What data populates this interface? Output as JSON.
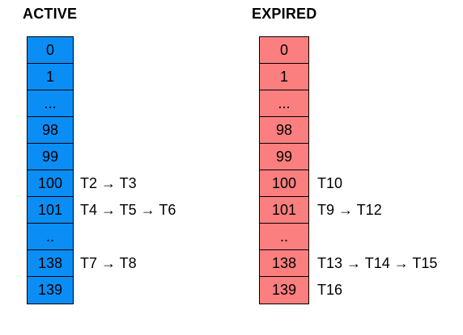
{
  "active": {
    "title": "ACTIVE",
    "color": "#0a8ef5",
    "cells": [
      "0",
      "1",
      "...",
      "98",
      "99",
      "100",
      "101",
      "..",
      "138",
      "139"
    ],
    "chains": [
      {
        "row": 5,
        "text": "T2 → T3"
      },
      {
        "row": 6,
        "text": "T4 → T5 → T6"
      },
      {
        "row": 8,
        "text": "T7 → T8"
      }
    ]
  },
  "expired": {
    "title": "EXPIRED",
    "color": "#fb7f7f",
    "cells": [
      "0",
      "1",
      "...",
      "98",
      "99",
      "100",
      "101",
      "..",
      "138",
      "139"
    ],
    "chains": [
      {
        "row": 5,
        "text": "T10"
      },
      {
        "row": 6,
        "text": "T9 → T12"
      },
      {
        "row": 8,
        "text": "T13 → T14 → T15"
      },
      {
        "row": 9,
        "text": "T16"
      }
    ]
  }
}
